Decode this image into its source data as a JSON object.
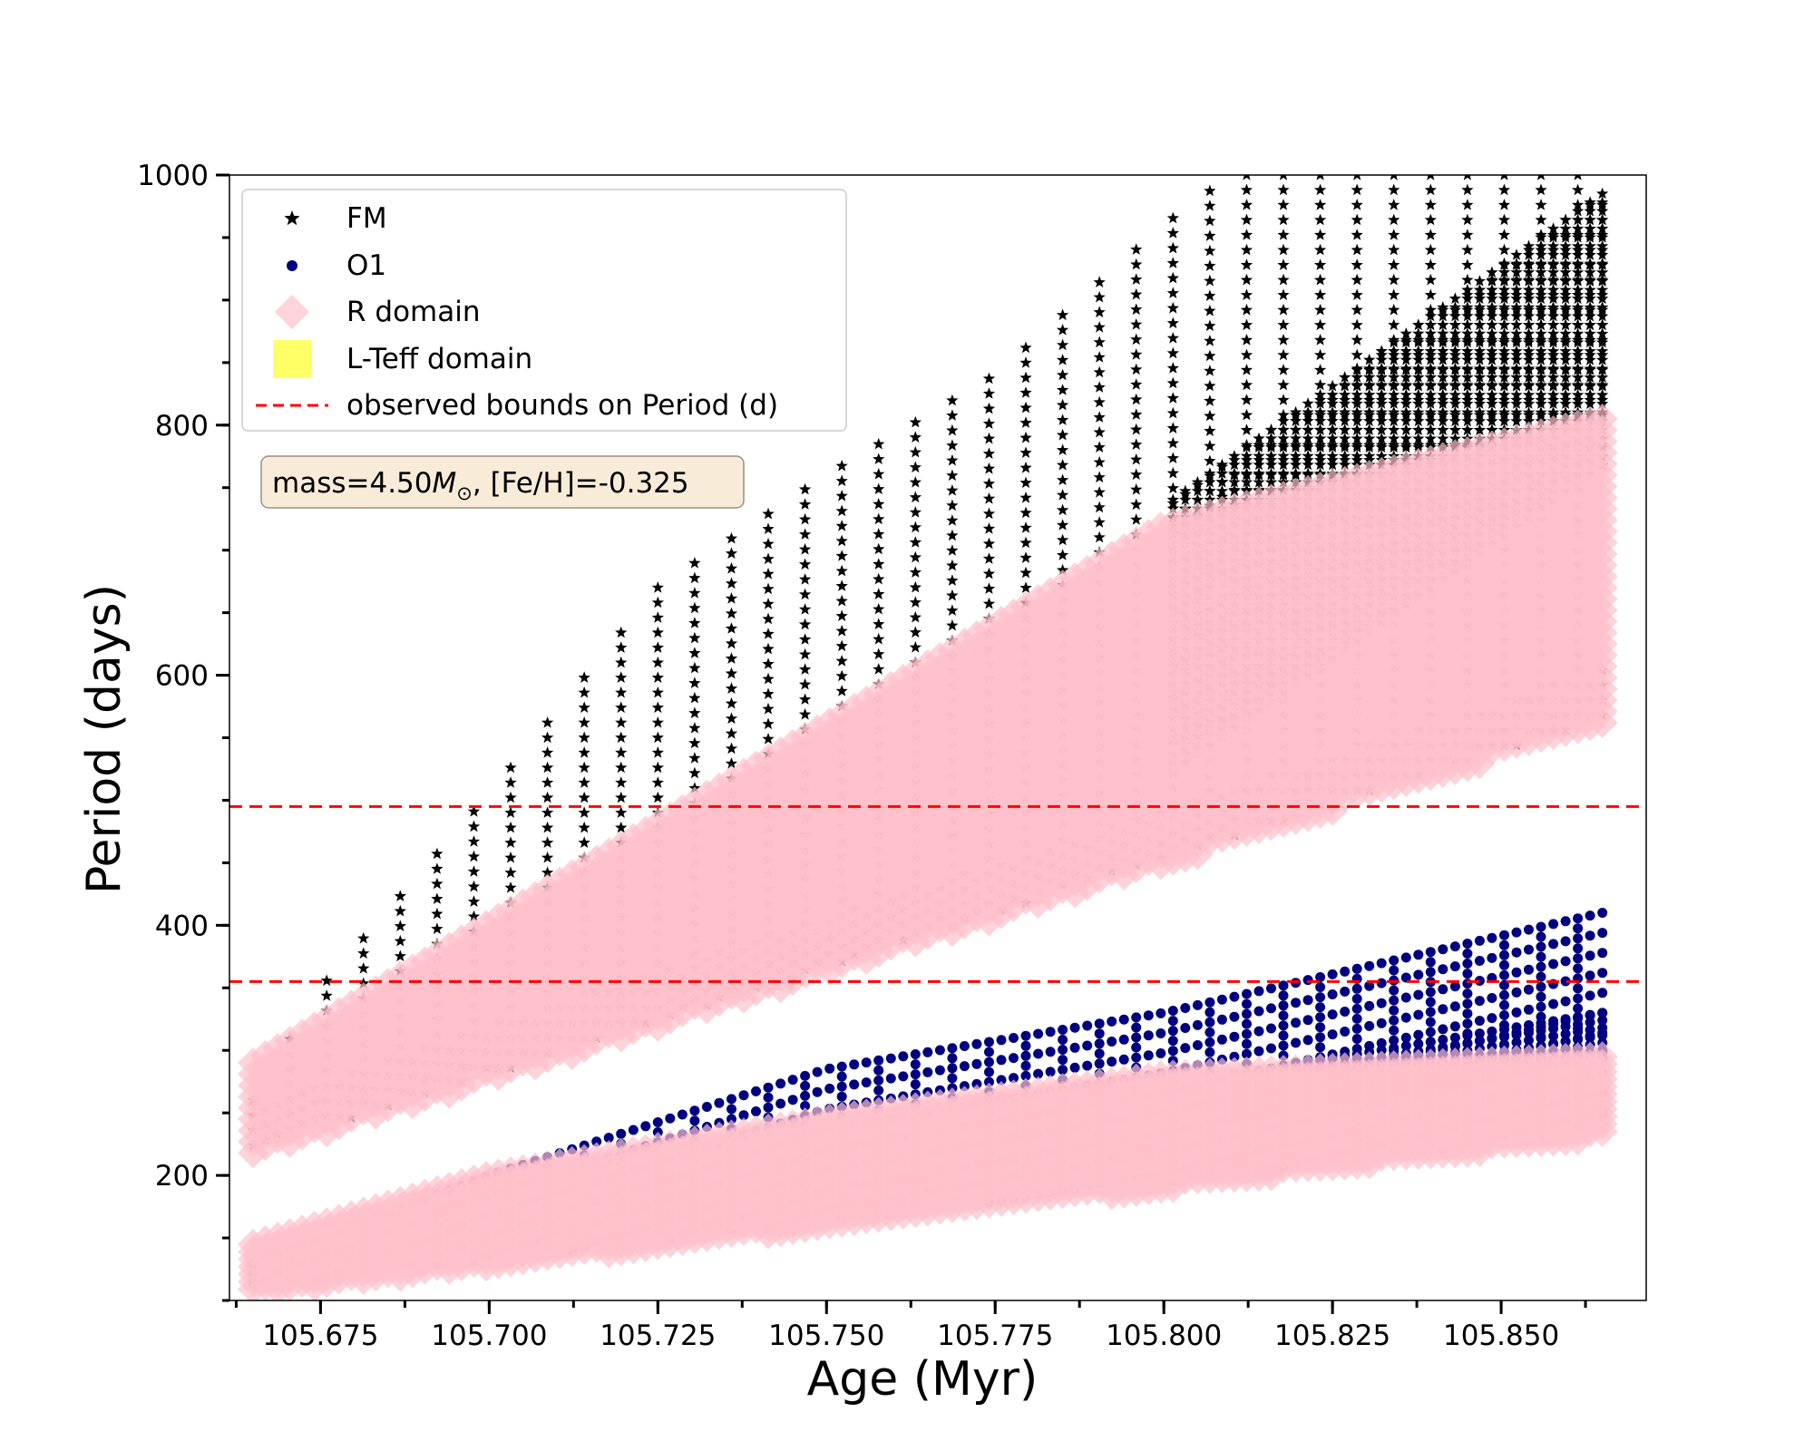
{
  "chart_data": {
    "type": "scatter",
    "title": "",
    "xlabel": "Age (Myr)",
    "ylabel": "Period (days)",
    "xlim": [
      105.6615,
      105.8715
    ],
    "ylim": [
      100,
      1000
    ],
    "x_major_ticks": [
      105.675,
      105.7,
      105.725,
      105.75,
      105.775,
      105.8,
      105.825,
      105.85
    ],
    "x_tick_labels": [
      "105.675",
      "105.700",
      "105.725",
      "105.750",
      "105.775",
      "105.800",
      "105.825",
      "105.850"
    ],
    "x_minor_step": 0.0125,
    "y_major_ticks": [
      200,
      400,
      600,
      800,
      1000
    ],
    "y_tick_labels": [
      "200",
      "400",
      "600",
      "800",
      "1000"
    ],
    "y_minor_step": 50,
    "grid": false,
    "legend_placement": "top-left",
    "legend": [
      {
        "key": "fm",
        "label": "FM",
        "marker": "star",
        "color": "#000000"
      },
      {
        "key": "o1",
        "label": "O1",
        "marker": "circle",
        "color": "#000080"
      },
      {
        "key": "r",
        "label": "R domain",
        "marker": "diamond",
        "color": "#ffc0cb"
      },
      {
        "key": "lteff",
        "label": "L-Teff domain",
        "marker": "square",
        "color": "#ffff66"
      },
      {
        "key": "bounds",
        "label": "observed bounds on Period (d)",
        "marker": "dashed-line",
        "color": "#ff0000"
      }
    ],
    "annotation": {
      "prefix": "mass=4.50",
      "symbol": "M",
      "subscript": "⊙",
      "suffix": ", [Fe/H]=-0.325"
    },
    "observed_bounds": [
      355,
      495
    ],
    "series": [
      {
        "name": "FM",
        "marker": "star",
        "color": "#000000",
        "x_range": [
          105.665,
          105.865
        ],
        "lower_edge": [
          [
            105.665,
            220
          ],
          [
            105.865,
            565
          ]
        ],
        "upper_edge": [
          [
            105.665,
            260
          ],
          [
            105.675,
            350
          ],
          [
            105.7,
            505
          ],
          [
            105.725,
            670
          ],
          [
            105.75,
            760
          ],
          [
            105.775,
            840
          ],
          [
            105.8,
            960
          ],
          [
            105.81,
            1000
          ],
          [
            105.865,
            1000
          ]
        ],
        "dense_band_top": [
          [
            105.8,
            735
          ],
          [
            105.865,
            985
          ]
        ]
      },
      {
        "name": "O1",
        "marker": "circle",
        "color": "#000080",
        "x_range": [
          105.665,
          105.865
        ],
        "lower_edge": [
          [
            105.665,
            110
          ],
          [
            105.865,
            235
          ]
        ],
        "upper_edge": [
          [
            105.665,
            130
          ],
          [
            105.7,
            200
          ],
          [
            105.75,
            285
          ],
          [
            105.8,
            330
          ],
          [
            105.865,
            410
          ]
        ],
        "dense_band_top": [
          [
            105.81,
            280
          ],
          [
            105.865,
            330
          ]
        ]
      },
      {
        "name": "R domain",
        "marker": "diamond",
        "color": "#ffc0cb",
        "regions": [
          {
            "lower_edge": [
              [
                105.665,
                215
              ],
              [
                105.865,
                560
              ]
            ],
            "upper_edge": [
              [
                105.665,
                290
              ],
              [
                105.8,
                720
              ],
              [
                105.865,
                805
              ]
            ]
          },
          {
            "lower_edge": [
              [
                105.665,
                105
              ],
              [
                105.865,
                230
              ]
            ],
            "upper_edge": [
              [
                105.665,
                145
              ],
              [
                105.7,
                200
              ],
              [
                105.75,
                245
              ],
              [
                105.8,
                280
              ],
              [
                105.865,
                295
              ]
            ]
          }
        ]
      }
    ]
  }
}
